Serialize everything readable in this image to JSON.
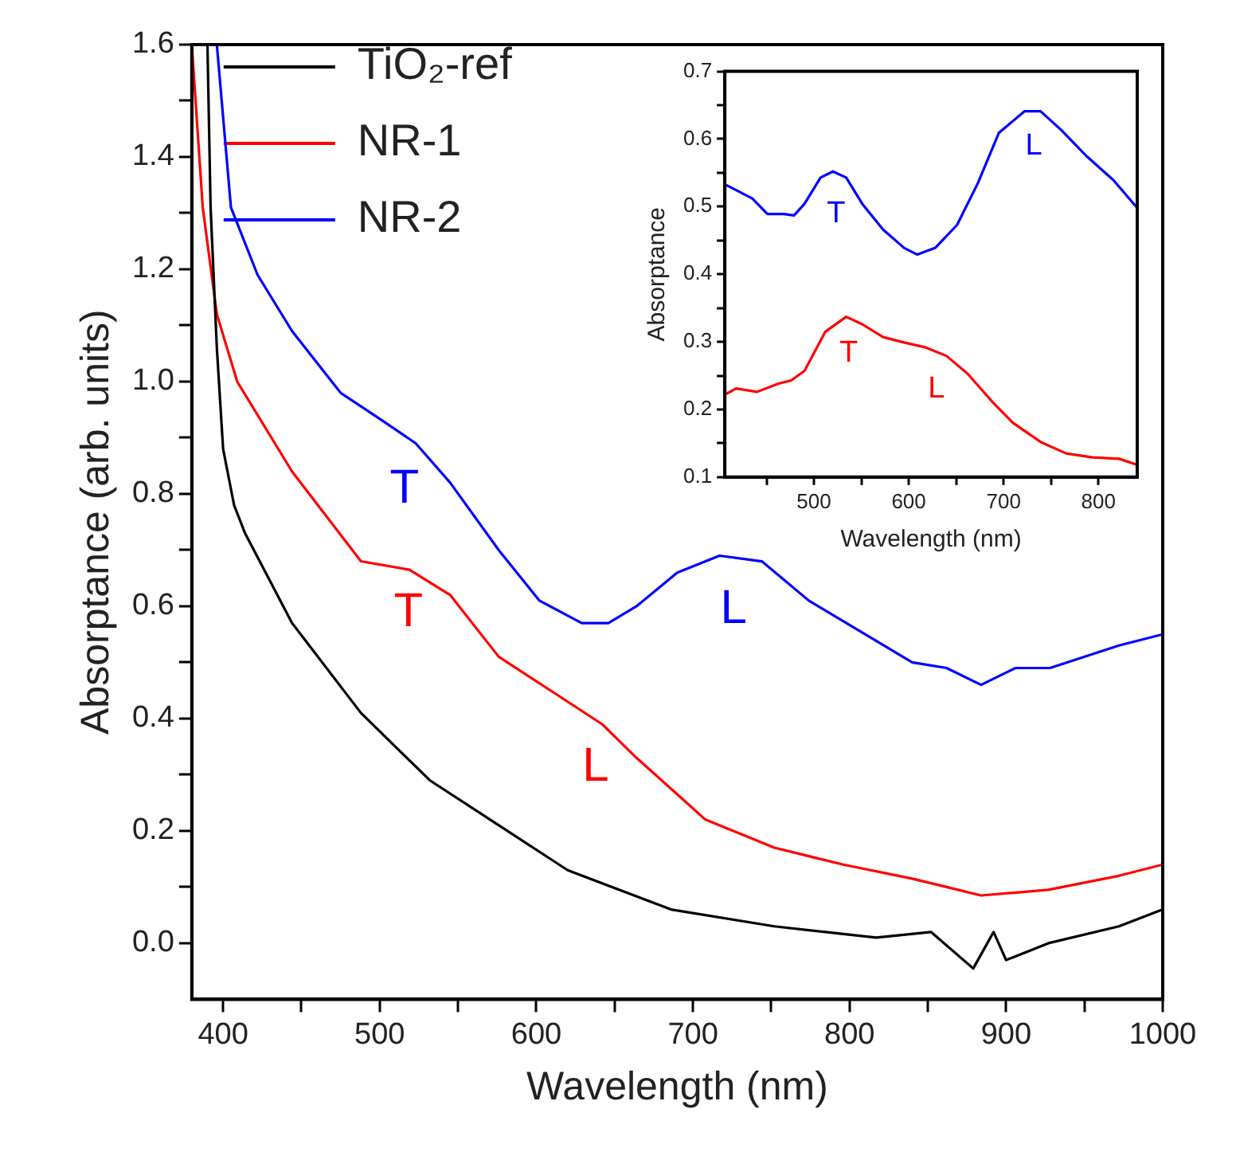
{
  "chart_data": [
    {
      "type": "line",
      "xlabel": "Wavelength (nm)",
      "ylabel": "Absorptance (arb. units)",
      "legend": "top left",
      "grid": false,
      "xlim": [
        380,
        1000
      ],
      "ylim": [
        -0.1,
        1.6
      ],
      "xticks": [
        400,
        {
          "value": 450,
          "label": null
        },
        500,
        {
          "value": 550,
          "label": null
        },
        600,
        {
          "value": 650,
          "label": null
        },
        700,
        {
          "value": 750,
          "label": null
        },
        800,
        {
          "value": 850,
          "label": null
        },
        900,
        {
          "value": 950,
          "label": null
        },
        1000
      ],
      "yticks": [
        {
          "value": 0,
          "label": "0.0"
        },
        {
          "value": 0.1,
          "label": null
        },
        0.2,
        {
          "value": 0.3,
          "label": null
        },
        0.4,
        {
          "value": 0.5,
          "label": null
        },
        0.6,
        {
          "value": 0.7,
          "label": null
        },
        0.8,
        {
          "value": 0.9,
          "label": null
        },
        {
          "value": 1,
          "label": "1.0"
        },
        {
          "value": 1.1,
          "label": null
        },
        1.2,
        {
          "value": 1.3,
          "label": null
        },
        1.4,
        {
          "value": 1.5,
          "label": null
        },
        1.6
      ],
      "series": [
        {
          "name": "TiO₂-ref",
          "color": "#000000",
          "x": [
            390,
            392,
            396,
            400,
            407,
            414,
            444,
            488,
            532,
            576,
            620,
            686,
            752,
            817,
            852,
            879,
            892,
            900,
            927,
            972,
            1000
          ],
          "values": [
            1.6,
            1.31,
            1.06,
            0.88,
            0.78,
            0.73,
            0.57,
            0.41,
            0.29,
            0.21,
            0.13,
            0.06,
            0.03,
            0.01,
            0.02,
            -0.045,
            0.02,
            -0.03,
            0.0,
            0.03,
            0.06
          ]
        },
        {
          "name": "NR-1",
          "color": "#ff0000",
          "x": [
            380,
            387,
            396,
            409,
            444,
            488,
            519,
            545,
            576,
            620,
            642,
            664,
            708,
            752,
            796,
            840,
            862,
            884,
            927,
            972,
            1000
          ],
          "values": [
            1.6,
            1.31,
            1.12,
            1.0,
            0.84,
            0.68,
            0.665,
            0.62,
            0.51,
            0.43,
            0.39,
            0.33,
            0.22,
            0.17,
            0.14,
            0.115,
            0.1,
            0.085,
            0.095,
            0.12,
            0.14
          ]
        },
        {
          "name": "NR-2",
          "color": "#0000ff",
          "x": [
            396,
            405,
            422,
            444,
            475,
            502,
            523,
            545,
            576,
            602,
            629,
            646,
            664,
            690,
            717,
            744,
            774,
            804,
            840,
            862,
            884,
            906,
            928,
            972,
            1000
          ],
          "values": [
            1.6,
            1.31,
            1.19,
            1.09,
            0.98,
            0.93,
            0.89,
            0.82,
            0.7,
            0.61,
            0.57,
            0.57,
            0.6,
            0.66,
            0.69,
            0.68,
            0.61,
            0.56,
            0.5,
            0.49,
            0.46,
            0.49,
            0.49,
            0.53,
            0.55
          ]
        }
      ],
      "annotations": [
        "T",
        "T",
        "L",
        "L"
      ]
    },
    {
      "type": "line",
      "xlabel": "Wavelength (nm)",
      "ylabel": "Absorptance",
      "grid": false,
      "xlim": [
        406,
        841
      ],
      "ylim": [
        0.1,
        0.7
      ],
      "xticks": [
        {
          "value": 450,
          "label": null
        },
        500,
        {
          "value": 550,
          "label": null
        },
        600,
        {
          "value": 650,
          "label": null
        },
        700,
        {
          "value": 750,
          "label": null
        },
        800
      ],
      "yticks": [
        0.1,
        {
          "value": 0.15,
          "label": null
        },
        0.2,
        {
          "value": 0.25,
          "label": null
        },
        0.3,
        {
          "value": 0.35,
          "label": null
        },
        0.4,
        {
          "value": 0.45,
          "label": null
        },
        0.5,
        {
          "value": 0.55,
          "label": null
        },
        0.6,
        {
          "value": 0.65,
          "label": null
        },
        0.7
      ],
      "series": [
        {
          "color": "#0000ff",
          "x": [
            406,
            435,
            451,
            468,
            479,
            490,
            507,
            520,
            534,
            551,
            573,
            595,
            609,
            628,
            651,
            673,
            695,
            722,
            739,
            761,
            788,
            816,
            841
          ],
          "values": [
            0.533,
            0.512,
            0.489,
            0.489,
            0.487,
            0.504,
            0.543,
            0.552,
            0.543,
            0.504,
            0.466,
            0.439,
            0.429,
            0.439,
            0.473,
            0.535,
            0.609,
            0.641,
            0.641,
            0.613,
            0.574,
            0.539,
            0.498
          ]
        },
        {
          "color": "#ff0000",
          "x": [
            406,
            418,
            440,
            462,
            476,
            490,
            512,
            534,
            551,
            573,
            595,
            617,
            640,
            662,
            689,
            710,
            739,
            766,
            794,
            822,
            841
          ],
          "values": [
            0.222,
            0.231,
            0.226,
            0.238,
            0.243,
            0.257,
            0.315,
            0.337,
            0.326,
            0.307,
            0.299,
            0.292,
            0.279,
            0.253,
            0.21,
            0.18,
            0.152,
            0.135,
            0.129,
            0.127,
            0.118
          ]
        }
      ],
      "annotations": [
        "T",
        "L",
        "T",
        "L"
      ]
    }
  ]
}
